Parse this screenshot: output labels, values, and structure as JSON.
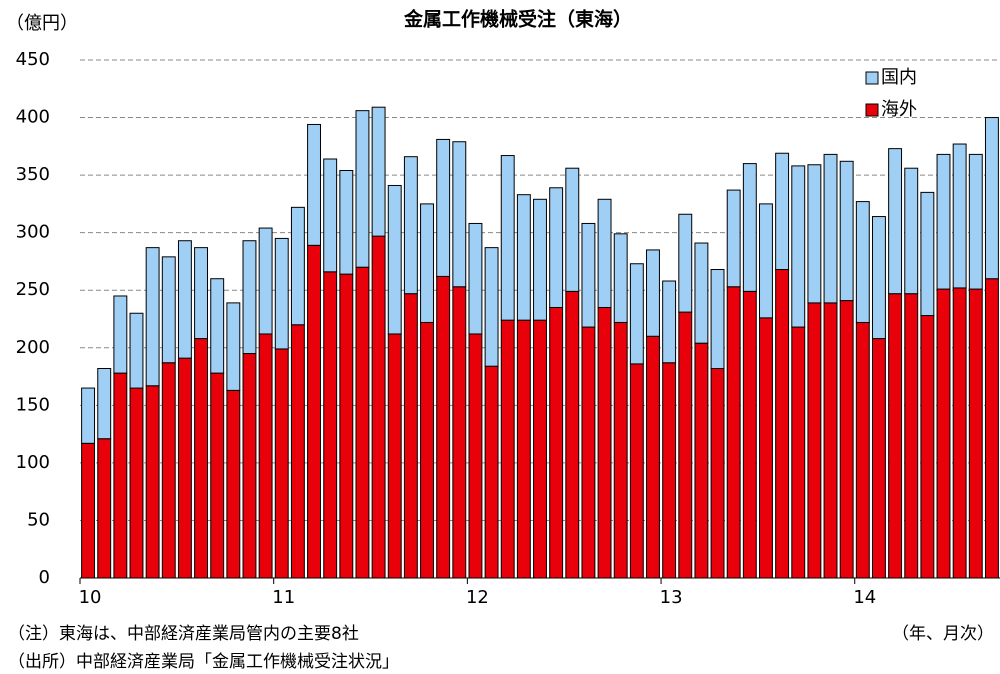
{
  "chart_data": {
    "type": "stacked_bar",
    "title": "金属工作機械受注（東海）",
    "y_unit": "（億円）",
    "x_unit": "（年、月次）",
    "notes": [
      "（注）東海は、中部経済産業局管内の主要8社",
      "（出所）中部経済産業局「金属工作機械受注状況」"
    ],
    "categories": [
      "10",
      null,
      null,
      null,
      null,
      null,
      null,
      null,
      null,
      null,
      null,
      null,
      "11",
      null,
      null,
      null,
      null,
      null,
      null,
      null,
      null,
      null,
      null,
      null,
      "12",
      null,
      null,
      null,
      null,
      null,
      null,
      null,
      null,
      null,
      null,
      null,
      "13",
      null,
      null,
      null,
      null,
      null,
      null,
      null,
      null,
      null,
      null,
      null,
      "14",
      null,
      null,
      null,
      null,
      null,
      null,
      null,
      null
    ],
    "series": [
      {
        "name": "海外",
        "color": "#e8000b",
        "values": [
          117,
          121,
          178,
          165,
          167,
          187,
          191,
          208,
          178,
          163,
          195,
          212,
          199,
          220,
          289,
          266,
          264,
          270,
          297,
          212,
          247,
          222,
          262,
          253,
          212,
          184,
          224,
          224,
          224,
          235,
          249,
          218,
          235,
          222,
          186,
          210,
          187,
          231,
          204,
          182,
          253,
          249,
          226,
          268,
          218,
          239,
          239,
          241,
          222,
          208,
          247,
          247,
          228,
          251,
          252,
          251,
          260
        ]
      },
      {
        "name": "国内",
        "color": "#9fcff5",
        "values": [
          48,
          61,
          67,
          65,
          120,
          92,
          102,
          79,
          82,
          76,
          98,
          92,
          96,
          102,
          105,
          98,
          90,
          136,
          112,
          129,
          119,
          103,
          119,
          126,
          96,
          103,
          143,
          109,
          105,
          104,
          107,
          90,
          94,
          77,
          87,
          75,
          71,
          85,
          87,
          86,
          84,
          111,
          99,
          101,
          140,
          120,
          129,
          121,
          105,
          106,
          126,
          109,
          107,
          117,
          125,
          117,
          140
        ]
      }
    ],
    "ylim": [
      0,
      450
    ],
    "yticks": [
      0,
      50,
      100,
      150,
      200,
      250,
      300,
      350,
      400,
      450
    ],
    "grid": true,
    "legend": "upper right"
  }
}
